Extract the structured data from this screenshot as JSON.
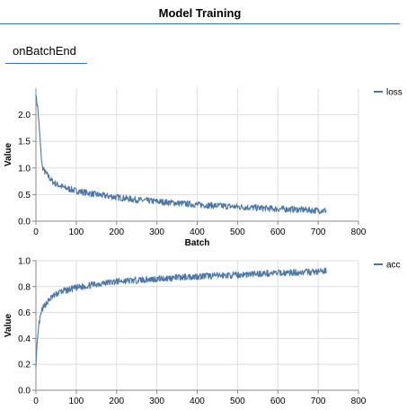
{
  "header": {
    "title": "Model Training"
  },
  "tabs": [
    {
      "label": "onBatchEnd",
      "selected": true
    }
  ],
  "colors": {
    "series": "#4c78a8",
    "grid": "#dddddd",
    "axis": "#888888",
    "header_rule": "#3f6fb3"
  },
  "chart_data": [
    {
      "type": "line",
      "series": [
        {
          "name": "loss"
        }
      ],
      "xlabel": "Batch",
      "ylabel": "Value",
      "xlim": [
        0,
        800
      ],
      "ylim": [
        0,
        2.5
      ],
      "xticks": [
        "0",
        "100",
        "200",
        "300",
        "400",
        "500",
        "600",
        "700",
        "800"
      ],
      "yticks": [
        "0.0",
        "0.5",
        "1.0",
        "1.5",
        "2.0"
      ],
      "grid": true,
      "legend": "right",
      "points": [
        [
          0,
          2.35
        ],
        [
          5,
          2.1
        ],
        [
          10,
          1.55
        ],
        [
          15,
          1.05
        ],
        [
          20,
          0.95
        ],
        [
          30,
          0.85
        ],
        [
          40,
          0.75
        ],
        [
          50,
          0.7
        ],
        [
          70,
          0.63
        ],
        [
          100,
          0.57
        ],
        [
          150,
          0.5
        ],
        [
          200,
          0.45
        ],
        [
          250,
          0.4
        ],
        [
          300,
          0.37
        ],
        [
          350,
          0.34
        ],
        [
          400,
          0.31
        ],
        [
          450,
          0.29
        ],
        [
          500,
          0.27
        ],
        [
          550,
          0.25
        ],
        [
          600,
          0.23
        ],
        [
          650,
          0.22
        ],
        [
          700,
          0.2
        ],
        [
          720,
          0.2
        ]
      ],
      "noise": 0.06
    },
    {
      "type": "line",
      "series": [
        {
          "name": "acc"
        }
      ],
      "xlabel": "",
      "ylabel": "Value",
      "xlim": [
        0,
        800
      ],
      "ylim": [
        0,
        1.0
      ],
      "xticks": [
        "0",
        "100",
        "200",
        "300",
        "400",
        "500",
        "600",
        "700",
        "800"
      ],
      "yticks": [
        "0.0",
        "0.2",
        "0.4",
        "0.6",
        "0.8",
        "1.0"
      ],
      "grid": true,
      "legend": "right",
      "points": [
        [
          0,
          0.2
        ],
        [
          3,
          0.35
        ],
        [
          8,
          0.52
        ],
        [
          15,
          0.62
        ],
        [
          25,
          0.67
        ],
        [
          40,
          0.72
        ],
        [
          60,
          0.76
        ],
        [
          100,
          0.79
        ],
        [
          150,
          0.82
        ],
        [
          200,
          0.84
        ],
        [
          250,
          0.85
        ],
        [
          300,
          0.86
        ],
        [
          350,
          0.87
        ],
        [
          400,
          0.88
        ],
        [
          450,
          0.885
        ],
        [
          500,
          0.89
        ],
        [
          550,
          0.9
        ],
        [
          600,
          0.905
        ],
        [
          650,
          0.91
        ],
        [
          700,
          0.915
        ],
        [
          720,
          0.92
        ]
      ],
      "noise": 0.025
    }
  ]
}
